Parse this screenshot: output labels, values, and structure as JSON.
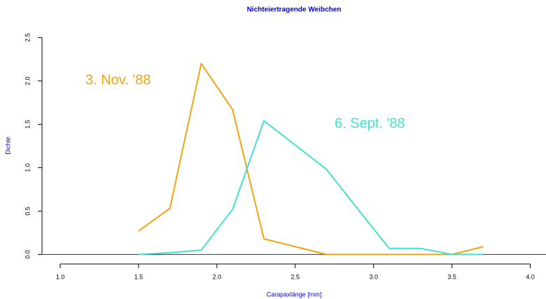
{
  "chart_data": {
    "type": "line",
    "title": "Nichteiertragende Weibchen",
    "x_label": "Carapaxlänge [mm]",
    "y_label": "Dichte",
    "x": [
      1.5,
      1.7,
      1.9,
      2.1,
      2.3,
      2.5,
      2.7,
      2.9,
      3.1,
      3.3,
      3.5,
      3.7
    ],
    "series": [
      {
        "name": "3. Nov. '88",
        "color": "#f4a30f",
        "values": [
          0.27,
          0.53,
          2.2,
          1.67,
          0.18,
          0.09,
          0.0,
          0.0,
          0.0,
          0.0,
          0.0,
          0.09
        ]
      },
      {
        "name": "6. Sept. '88",
        "color": "#40e0d0",
        "values": [
          0.0,
          0.02,
          0.05,
          0.52,
          1.54,
          1.26,
          0.98,
          0.52,
          0.07,
          0.07,
          0.0,
          0.0
        ]
      }
    ],
    "xlim": [
      0.884,
      4.1
    ],
    "ylim": [
      -0.11,
      2.61
    ],
    "xticks": [
      {
        "value": 1.0,
        "label": "1.0"
      },
      1.5,
      {
        "value": 2.0,
        "label": "2.0"
      },
      2.5,
      {
        "value": 3.0,
        "label": "3.0"
      },
      3.5,
      {
        "value": 4.0,
        "label": "4.0"
      }
    ],
    "yticks": [
      {
        "value": 0.0,
        "label": "0.0"
      },
      0.5,
      {
        "value": 1.0,
        "label": "1.0"
      },
      1.5,
      {
        "value": 2.0,
        "label": "2.0"
      },
      2.5
    ],
    "hline": 0,
    "grid": false
  }
}
